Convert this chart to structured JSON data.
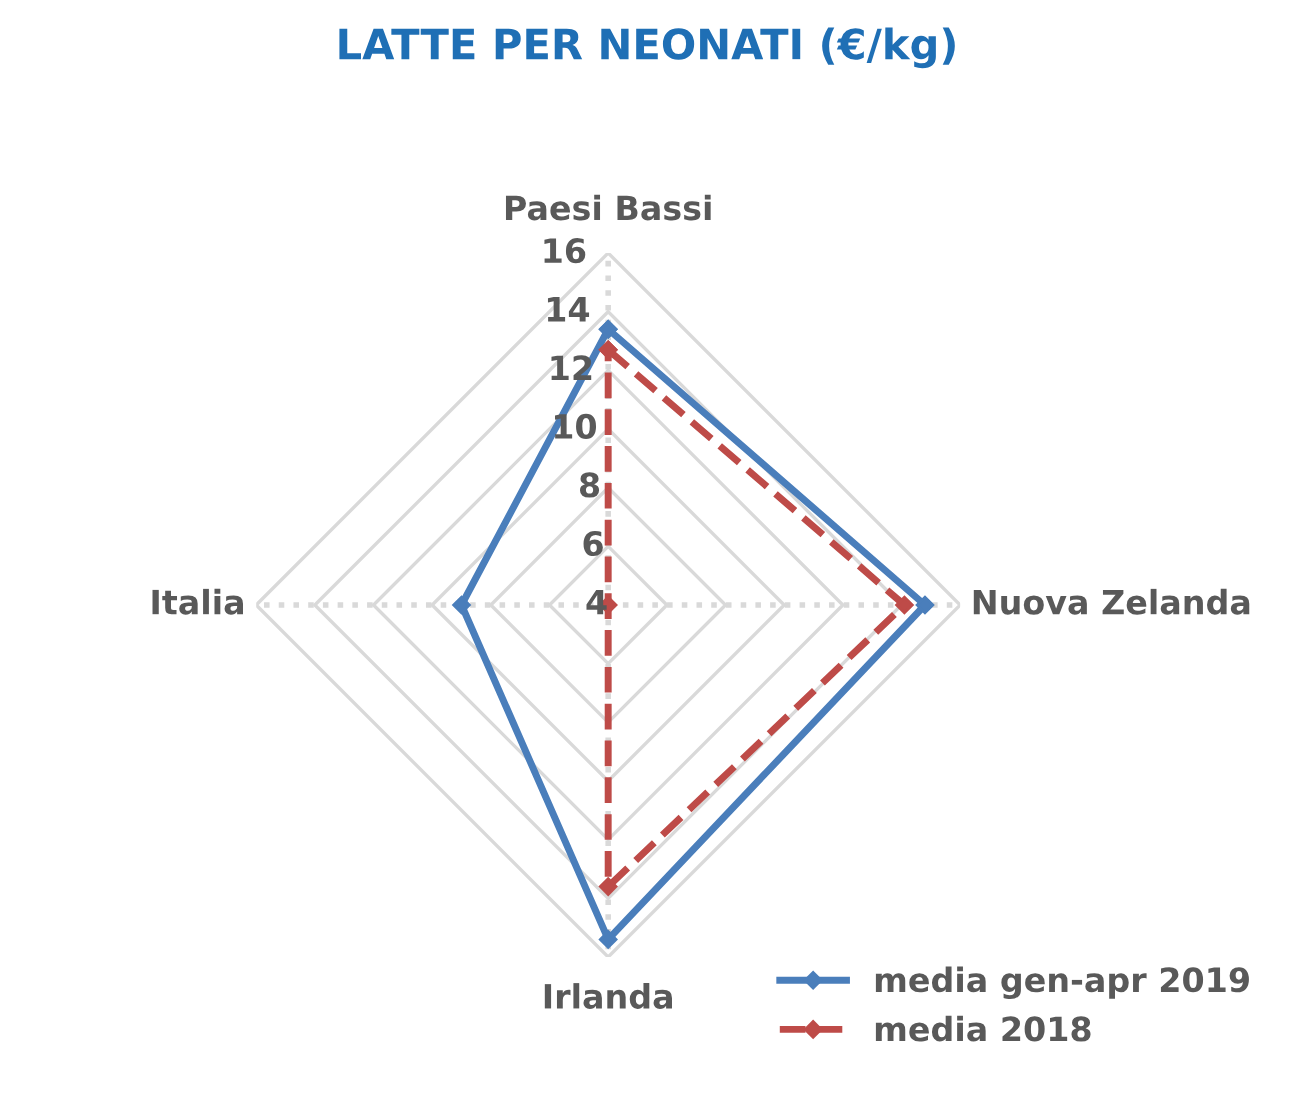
{
  "chart_data": {
    "type": "radar",
    "title": "LATTE PER NEONATI (€/kg)",
    "categories": [
      "Paesi Bassi",
      "Nuova Zelanda",
      "Irlanda",
      "Italia"
    ],
    "series": [
      {
        "name": "media gen-apr 2019",
        "color": "#4a7ebb",
        "values": [
          13.4,
          14.8,
          15.4,
          9.0
        ],
        "line_style": "solid"
      },
      {
        "name": "media 2018",
        "color": "#be4b48",
        "values": [
          12.7,
          14.1,
          13.6,
          4.0
        ],
        "line_style": "dashed"
      }
    ],
    "ylim": [
      4,
      16
    ],
    "yticks": [
      4,
      6,
      8,
      10,
      12,
      14,
      16
    ],
    "grid": true,
    "legend": "bottom right",
    "marker": "diamond"
  }
}
